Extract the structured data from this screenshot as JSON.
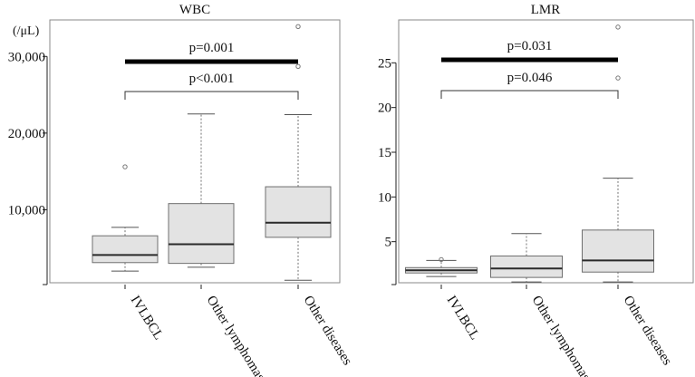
{
  "chart_data": [
    {
      "type": "box",
      "title": "WBC",
      "unit_label": "(/μL)",
      "categories": [
        "IVLBCL",
        "Other lymphomas",
        "Other diseases"
      ],
      "ylim": [
        0,
        35000
      ],
      "yticks": [
        10000,
        20000,
        30000
      ],
      "ytick_labels": [
        "10,000",
        "20,000",
        "30,000"
      ],
      "boxes": [
        {
          "name": "IVLBCL",
          "whisker_low": 2000,
          "q1": 3100,
          "median": 4100,
          "q3": 6600,
          "whisker_high": 7700,
          "outliers": [
            15600
          ]
        },
        {
          "name": "Other lymphomas",
          "whisker_low": 2500,
          "q1": 3000,
          "median": 5500,
          "q3": 10800,
          "whisker_high": 22500,
          "outliers": []
        },
        {
          "name": "Other diseases",
          "whisker_low": 800,
          "q1": 6400,
          "median": 8300,
          "q3": 13000,
          "whisker_high": 22400,
          "outliers": [
            28700,
            33900
          ]
        }
      ],
      "comparisons": [
        {
          "label": "p=0.001",
          "from": "IVLBCL",
          "to": "Other diseases",
          "style": "thick-bar"
        },
        {
          "label": "p<0.001",
          "from": "IVLBCL",
          "to": "Other diseases",
          "style": "bracket"
        }
      ],
      "grid": false
    },
    {
      "type": "box",
      "title": "LMR",
      "unit_label": "",
      "categories": [
        "IVLBCL",
        "Other lymphomas",
        "Other diseases"
      ],
      "ylim": [
        0,
        30
      ],
      "yticks": [
        5,
        10,
        15,
        20,
        25
      ],
      "ytick_labels": [
        "5",
        "10",
        "15",
        "20",
        "25"
      ],
      "boxes": [
        {
          "name": "IVLBCL",
          "whisker_low": 1.1,
          "q1": 1.5,
          "median": 1.8,
          "q3": 2.1,
          "whisker_high": 2.9,
          "outliers": [
            3.0
          ]
        },
        {
          "name": "Other lymphomas",
          "whisker_low": 0.5,
          "q1": 1.0,
          "median": 2.0,
          "q3": 3.4,
          "whisker_high": 5.9,
          "outliers": []
        },
        {
          "name": "Other diseases",
          "whisker_low": 0.5,
          "q1": 1.6,
          "median": 2.9,
          "q3": 6.3,
          "whisker_high": 12.1,
          "outliers": [
            23.3,
            29.0
          ]
        }
      ],
      "comparisons": [
        {
          "label": "p=0.031",
          "from": "IVLBCL",
          "to": "Other diseases",
          "style": "thick-bar"
        },
        {
          "label": "p=0.046",
          "from": "IVLBCL",
          "to": "Other diseases",
          "style": "bracket"
        }
      ],
      "grid": false
    }
  ],
  "colors": {
    "box_fill": "#e3e3e3",
    "box_stroke": "#6f6f6f",
    "median": "#2a2a2a",
    "whisker": "#9a9a9a",
    "frame": "#8a8a8a",
    "bar": "#000000"
  }
}
